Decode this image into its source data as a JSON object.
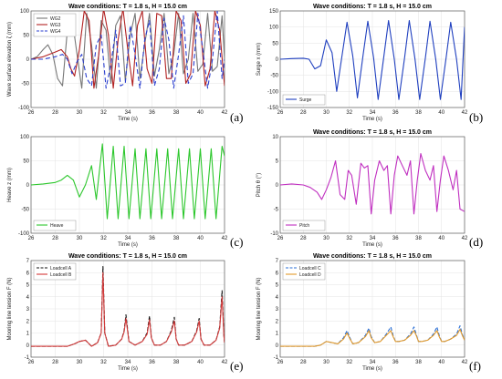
{
  "panel_letters": [
    "(a)",
    "(b)",
    "(c)",
    "(d)",
    "(e)",
    "(f)"
  ],
  "chart_data": [
    {
      "type": "line",
      "title": "Wave conditions: T = 1.8 s, H = 15.0 cm",
      "xlabel": "Time (s)",
      "ylabel": "Wave surface elevation ζ (mm)",
      "xlim": [
        26,
        42
      ],
      "ylim": [
        -100,
        100
      ],
      "xticks": [
        26,
        28,
        30,
        32,
        34,
        36,
        38,
        40,
        42
      ],
      "yticks": [
        -100,
        -50,
        0,
        50,
        100
      ],
      "grid": true,
      "legend_position": "top-left",
      "series": [
        {
          "name": "WG2",
          "color": "#777777",
          "dash": "",
          "x": [
            26,
            26.5,
            27,
            27.4,
            27.8,
            28.2,
            28.6,
            29.0,
            29.4,
            29.8,
            30.2,
            30.6,
            31.0,
            31.4,
            31.8,
            32.2,
            32.6,
            33.0,
            33.4,
            33.8,
            34.2,
            34.6,
            35.0,
            35.4,
            35.8,
            36.2,
            36.6,
            37.0,
            37.4,
            37.8,
            38.2,
            38.6,
            39.0,
            39.4,
            39.8,
            40.2,
            40.6,
            41.0,
            41.4,
            41.8,
            42
          ],
          "y": [
            0,
            5,
            20,
            30,
            10,
            -40,
            -55,
            60,
            85,
            10,
            -60,
            95,
            30,
            -60,
            80,
            60,
            -50,
            70,
            90,
            -45,
            50,
            95,
            -40,
            30,
            95,
            -35,
            20,
            95,
            -30,
            10,
            95,
            -30,
            0,
            95,
            -25,
            -10,
            95,
            -25,
            -15,
            90,
            0
          ]
        },
        {
          "name": "WG3",
          "color": "#b22222",
          "dash": "",
          "x": [
            26,
            27,
            28.0,
            28.5,
            29.0,
            29.3,
            29.6,
            30.0,
            30.4,
            30.8,
            31.2,
            31.6,
            32.0,
            32.4,
            32.8,
            33.2,
            33.6,
            34.0,
            34.4,
            34.8,
            35.2,
            35.6,
            36.0,
            36.4,
            36.8,
            37.2,
            37.6,
            38.0,
            38.4,
            38.8,
            39.2,
            39.6,
            40.0,
            40.4,
            40.8,
            41.2,
            41.6,
            42
          ],
          "y": [
            0,
            5,
            15,
            20,
            5,
            -20,
            -35,
            20,
            100,
            80,
            -60,
            10,
            105,
            50,
            -60,
            40,
            105,
            20,
            -55,
            70,
            100,
            -20,
            -50,
            95,
            90,
            -40,
            -40,
            100,
            80,
            -50,
            -30,
            100,
            70,
            -55,
            -20,
            100,
            60,
            -55
          ]
        },
        {
          "name": "WG4",
          "color": "#2b3fcf",
          "dash": "5,3",
          "x": [
            26,
            27,
            28,
            28.6,
            29.0,
            29.4,
            29.8,
            30.2,
            30.6,
            31.0,
            31.4,
            31.8,
            32.2,
            32.6,
            33.0,
            33.4,
            33.8,
            34.2,
            34.6,
            35.0,
            35.4,
            35.8,
            36.2,
            36.6,
            37.0,
            37.4,
            37.8,
            38.2,
            38.6,
            39.0,
            39.4,
            39.8,
            40.2,
            40.6,
            41.0,
            41.4,
            41.8,
            42
          ],
          "y": [
            0,
            0,
            5,
            10,
            0,
            -30,
            -5,
            10,
            -40,
            -55,
            30,
            50,
            -60,
            -10,
            60,
            -55,
            -50,
            70,
            10,
            -60,
            40,
            80,
            -55,
            -20,
            85,
            40,
            -60,
            10,
            90,
            -50,
            -30,
            95,
            20,
            -60,
            0,
            100,
            -40,
            0
          ]
        }
      ]
    },
    {
      "type": "line",
      "title": "Wave conditions: T = 1.8 s, H = 15.0 cm",
      "xlabel": "Time (s)",
      "ylabel": "Surge x (mm)",
      "xlim": [
        26,
        42
      ],
      "ylim": [
        -150,
        150
      ],
      "xticks": [
        26,
        28,
        30,
        32,
        34,
        36,
        38,
        40,
        42
      ],
      "yticks": [
        -150,
        -100,
        -50,
        0,
        50,
        100,
        150
      ],
      "grid": true,
      "legend_position": "bottom-left",
      "series": [
        {
          "name": "Surge",
          "color": "#1f3fbf",
          "dash": "",
          "x": [
            26,
            27,
            28,
            28.5,
            29.0,
            29.5,
            30.0,
            30.5,
            30.9,
            31.4,
            31.8,
            32.3,
            32.7,
            33.2,
            33.6,
            34.1,
            34.5,
            35.0,
            35.4,
            35.9,
            36.3,
            36.8,
            37.2,
            37.7,
            38.1,
            38.6,
            39.0,
            39.5,
            39.9,
            40.4,
            40.8,
            41.3,
            41.7,
            42
          ],
          "y": [
            0,
            2,
            3,
            0,
            -30,
            -20,
            60,
            20,
            -100,
            20,
            115,
            10,
            -120,
            15,
            118,
            5,
            -125,
            10,
            120,
            0,
            -125,
            5,
            120,
            0,
            -125,
            5,
            118,
            0,
            -125,
            5,
            115,
            0,
            -125,
            100
          ]
        }
      ]
    },
    {
      "type": "line",
      "title": "",
      "xlabel": "Time (s)",
      "ylabel": "Heave z (mm)",
      "xlim": [
        26,
        42
      ],
      "ylim": [
        -100,
        100
      ],
      "xticks": [
        26,
        28,
        30,
        32,
        34,
        36,
        38,
        40,
        42
      ],
      "yticks": [
        -100,
        -50,
        0,
        50,
        100
      ],
      "grid": true,
      "legend_position": "bottom-left",
      "series": [
        {
          "name": "Heave",
          "color": "#2cc72c",
          "dash": "",
          "x": [
            26,
            27,
            28,
            28.5,
            29.0,
            29.5,
            30.0,
            30.5,
            31.0,
            31.4,
            31.9,
            32.3,
            32.8,
            33.2,
            33.7,
            34.1,
            34.6,
            35.0,
            35.5,
            35.9,
            36.4,
            36.8,
            37.3,
            37.7,
            38.2,
            38.6,
            39.1,
            39.5,
            40.0,
            40.4,
            40.9,
            41.3,
            41.8,
            42
          ],
          "y": [
            0,
            2,
            5,
            10,
            20,
            10,
            -25,
            0,
            40,
            -30,
            85,
            -70,
            80,
            -70,
            80,
            -70,
            75,
            -70,
            75,
            -70,
            75,
            -70,
            75,
            -70,
            75,
            -70,
            75,
            -70,
            75,
            -70,
            75,
            -70,
            80,
            60
          ]
        }
      ]
    },
    {
      "type": "line",
      "title": "Wave conditions: T = 1.8 s, H = 15.0 cm",
      "xlabel": "Time (s)",
      "ylabel": "Pitch θ (°)",
      "xlim": [
        26,
        42
      ],
      "ylim": [
        -10,
        10
      ],
      "xticks": [
        26,
        28,
        30,
        32,
        34,
        36,
        38,
        40,
        42
      ],
      "yticks": [
        -10,
        -5,
        0,
        5,
        10
      ],
      "grid": true,
      "legend_position": "bottom-left",
      "series": [
        {
          "name": "Pitch",
          "color": "#c02fc0",
          "dash": "",
          "x": [
            26,
            27,
            28,
            28.6,
            29.2,
            29.6,
            30.0,
            30.4,
            30.8,
            31.2,
            31.6,
            31.9,
            32.2,
            32.6,
            33.0,
            33.3,
            33.6,
            33.9,
            34.2,
            34.6,
            35.0,
            35.3,
            35.6,
            35.9,
            36.2,
            36.6,
            37.0,
            37.3,
            37.6,
            37.9,
            38.2,
            38.6,
            39.0,
            39.3,
            39.6,
            39.9,
            40.2,
            40.6,
            41.0,
            41.3,
            41.6,
            42
          ],
          "y": [
            0,
            0.2,
            0,
            -0.5,
            -1.5,
            -3,
            -1,
            1.5,
            5,
            -2,
            -3,
            3,
            2,
            -4,
            4.5,
            3.5,
            4,
            -6,
            1,
            5,
            3,
            4,
            -6,
            2,
            6,
            4,
            2,
            5,
            -6,
            1,
            6.5,
            3,
            1,
            4,
            -5.5,
            1,
            6,
            3,
            -1,
            3,
            -5,
            -5.5
          ]
        }
      ]
    },
    {
      "type": "line",
      "title": "Wave conditions: T = 1.8 s, H = 15.0 cm",
      "xlabel": "Time (s)",
      "ylabel": "Mooring line tension F (N)",
      "xlim": [
        26,
        42
      ],
      "ylim": [
        -1,
        7
      ],
      "xticks": [
        26,
        28,
        30,
        32,
        34,
        36,
        38,
        40,
        42
      ],
      "yticks": [
        -1,
        0,
        1,
        2,
        3,
        4,
        5,
        6,
        7
      ],
      "grid": true,
      "legend_position": "top-left",
      "series": [
        {
          "name": "Loadcell A",
          "color": "#111111",
          "dash": "4,2",
          "x": [
            26,
            27,
            28,
            29,
            29.6,
            30.0,
            30.5,
            31.0,
            31.5,
            31.8,
            31.95,
            32.1,
            32.4,
            33.0,
            33.5,
            33.7,
            33.85,
            34.1,
            34.6,
            35.2,
            35.6,
            35.8,
            35.95,
            36.2,
            36.7,
            37.2,
            37.6,
            37.85,
            38.0,
            38.2,
            38.7,
            39.3,
            39.7,
            39.9,
            40.05,
            40.3,
            40.8,
            41.3,
            41.6,
            41.8,
            41.95,
            42
          ],
          "y": [
            -0.1,
            -0.1,
            -0.1,
            -0.1,
            0.1,
            0.3,
            0.4,
            -0.1,
            0.2,
            1.0,
            6.5,
            1.0,
            -0.1,
            0,
            0.5,
            1.2,
            2.5,
            0.3,
            0,
            0.3,
            1.0,
            2.4,
            0.6,
            0,
            0,
            0.3,
            1.2,
            2.3,
            0.5,
            0,
            0,
            0.3,
            1.2,
            2.2,
            0.5,
            0,
            0,
            0.4,
            1.5,
            4.5,
            0.8,
            0.2
          ]
        },
        {
          "name": "Loadcell B",
          "color": "#d43a3a",
          "dash": "",
          "x": [
            26,
            27,
            28,
            29,
            29.6,
            30.0,
            30.5,
            31.0,
            31.5,
            31.8,
            31.95,
            32.1,
            32.4,
            33.0,
            33.5,
            33.7,
            33.85,
            34.1,
            34.6,
            35.2,
            35.6,
            35.8,
            35.95,
            36.2,
            36.7,
            37.2,
            37.6,
            37.85,
            38.0,
            38.2,
            38.7,
            39.3,
            39.7,
            39.9,
            40.05,
            40.3,
            40.8,
            41.3,
            41.6,
            41.8,
            41.95,
            42
          ],
          "y": [
            -0.1,
            -0.1,
            -0.1,
            -0.1,
            0.1,
            0.3,
            0.4,
            -0.1,
            0.2,
            1.0,
            6.0,
            1.0,
            -0.1,
            0,
            0.5,
            1.1,
            2.2,
            0.3,
            0,
            0.3,
            0.9,
            2.1,
            0.6,
            0,
            0,
            0.3,
            1.1,
            2.0,
            0.5,
            0,
            0,
            0.3,
            1.1,
            2.0,
            0.5,
            0,
            0,
            0.4,
            1.4,
            4.0,
            0.8,
            0.2
          ]
        }
      ]
    },
    {
      "type": "line",
      "title": "Wave conditions: T = 1.8 s, H = 15.0 cm",
      "xlabel": "Time (s)",
      "ylabel": "Mooring line tension F (N)",
      "xlim": [
        26,
        42
      ],
      "ylim": [
        -1,
        7
      ],
      "xticks": [
        26,
        28,
        30,
        32,
        34,
        36,
        38,
        40,
        42
      ],
      "yticks": [
        -1,
        0,
        1,
        2,
        3,
        4,
        5,
        6,
        7
      ],
      "grid": true,
      "legend_position": "top-left",
      "series": [
        {
          "name": "Loadcell C",
          "color": "#2a6fd6",
          "dash": "4,2",
          "x": [
            26,
            27,
            28,
            29,
            29.5,
            30.0,
            30.5,
            31.0,
            31.5,
            31.8,
            32.0,
            32.3,
            32.8,
            33.4,
            33.7,
            33.9,
            34.2,
            34.7,
            35.2,
            35.6,
            35.8,
            36.0,
            36.3,
            36.8,
            37.3,
            37.6,
            37.8,
            38.0,
            38.3,
            38.8,
            39.3,
            39.6,
            39.8,
            40.0,
            40.3,
            40.8,
            41.3,
            41.6,
            41.8,
            42
          ],
          "y": [
            -0.1,
            -0.1,
            -0.1,
            -0.1,
            0.0,
            0.3,
            0.2,
            0.1,
            0.6,
            1.2,
            0.7,
            0.1,
            0.2,
            0.8,
            1.4,
            0.7,
            0.2,
            0.3,
            0.9,
            1.5,
            0.8,
            0.3,
            0.3,
            0.4,
            0.9,
            1.5,
            0.9,
            0.3,
            0.3,
            0.4,
            0.9,
            1.5,
            0.8,
            0.3,
            0.3,
            0.5,
            0.9,
            1.6,
            0.9,
            0.4
          ]
        },
        {
          "name": "Loadcell D",
          "color": "#e39a2a",
          "dash": "",
          "x": [
            26,
            27,
            28,
            29,
            29.5,
            30.0,
            30.5,
            31.0,
            31.5,
            31.8,
            32.0,
            32.3,
            32.8,
            33.4,
            33.7,
            33.9,
            34.2,
            34.7,
            35.2,
            35.6,
            35.8,
            36.0,
            36.3,
            36.8,
            37.3,
            37.6,
            37.8,
            38.0,
            38.3,
            38.8,
            39.3,
            39.6,
            39.8,
            40.0,
            40.3,
            40.8,
            41.3,
            41.6,
            41.8,
            42
          ],
          "y": [
            -0.1,
            -0.1,
            -0.1,
            -0.1,
            0.0,
            0.3,
            0.2,
            0.1,
            0.5,
            1.0,
            0.6,
            0.1,
            0.2,
            0.7,
            1.2,
            0.6,
            0.2,
            0.3,
            0.8,
            1.2,
            0.7,
            0.3,
            0.3,
            0.4,
            0.8,
            1.2,
            0.8,
            0.3,
            0.3,
            0.4,
            0.8,
            1.2,
            0.7,
            0.3,
            0.3,
            0.5,
            0.8,
            1.3,
            0.8,
            0.4
          ]
        }
      ]
    }
  ]
}
